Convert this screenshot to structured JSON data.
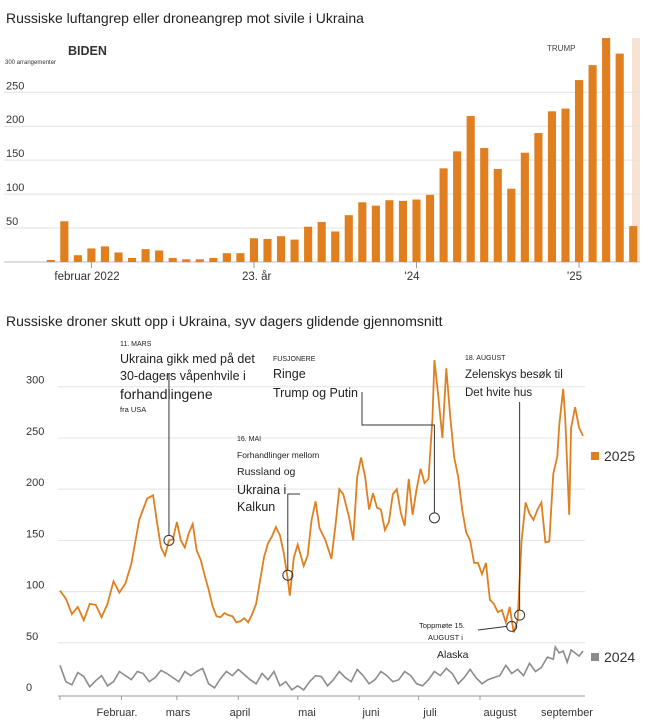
{
  "chart_data": [
    {
      "type": "bar",
      "title": "Russiske luftangrep eller droneangrep mot sivile i Ukraina",
      "ylabel_note": "300 arrangementer",
      "ylim": [
        0,
        330
      ],
      "yticks": [
        50,
        100,
        150,
        200,
        250
      ],
      "bar_color": "#e07f1f",
      "shade_color": "#f8e3d3",
      "period_labels": {
        "left": "BIDEN",
        "right": "TRUMP"
      },
      "trump_from_index": 44,
      "x_labels": [
        {
          "index": 3,
          "label": "februar 2022"
        },
        {
          "index": 15,
          "label": "23. år"
        },
        {
          "index": 27,
          "label": "'24"
        },
        {
          "index": 39,
          "label": "'25"
        }
      ],
      "values": [
        3,
        60,
        10,
        20,
        23,
        14,
        6,
        19,
        17,
        6,
        4,
        4,
        6,
        13,
        13,
        35,
        34,
        38,
        33,
        52,
        59,
        45,
        69,
        88,
        83,
        91,
        90,
        92,
        99,
        138,
        163,
        215,
        168,
        137,
        108,
        161,
        190,
        222,
        226,
        268,
        290,
        330,
        307,
        53
      ]
    },
    {
      "type": "line",
      "title": "Russiske droner skutt opp i Ukraina, syv dagers glidende gjennomsnitt",
      "ylim": [
        0,
        330
      ],
      "yticks": [
        0,
        50,
        100,
        150,
        200,
        250,
        300
      ],
      "xticks": [
        "Februar.",
        "mars",
        "april",
        "mai",
        "juni",
        "juli",
        "august",
        "september"
      ],
      "series": [
        {
          "name": "2025",
          "color": "#e07f1f",
          "points": [
            [
              0,
              101
            ],
            [
              3,
              93
            ],
            [
              6,
              78
            ],
            [
              9,
              85
            ],
            [
              12,
              72
            ],
            [
              15,
              88
            ],
            [
              18,
              87
            ],
            [
              21,
              75
            ],
            [
              24,
              88
            ],
            [
              27,
              110
            ],
            [
              30,
              99
            ],
            [
              33,
              108
            ],
            [
              36,
              127
            ],
            [
              40,
              170
            ],
            [
              44,
              191
            ],
            [
              47,
              194
            ],
            [
              49,
              167
            ],
            [
              51,
              143
            ],
            [
              53,
              135
            ],
            [
              55,
              150
            ],
            [
              57,
              151
            ],
            [
              59,
              168
            ],
            [
              61,
              150
            ],
            [
              63,
              143
            ],
            [
              65,
              157
            ],
            [
              67,
              166
            ],
            [
              69,
              140
            ],
            [
              71,
              131
            ],
            [
              73,
              116
            ],
            [
              75,
              102
            ],
            [
              77,
              86
            ],
            [
              79,
              76
            ],
            [
              81,
              75
            ],
            [
              83,
              79
            ],
            [
              85,
              77
            ],
            [
              87,
              76
            ],
            [
              89,
              70
            ],
            [
              91,
              71
            ],
            [
              93,
              74
            ],
            [
              95,
              70
            ],
            [
              97,
              78
            ],
            [
              99,
              88
            ],
            [
              101,
              111
            ],
            [
              103,
              134
            ],
            [
              105,
              147
            ],
            [
              107,
              154
            ],
            [
              109,
              163
            ],
            [
              111,
              155
            ],
            [
              113,
              137
            ],
            [
              115,
              112
            ],
            [
              116,
              96
            ],
            [
              118,
              133
            ],
            [
              120,
              146
            ],
            [
              123,
              125
            ],
            [
              125,
              135
            ],
            [
              127,
              170
            ],
            [
              129,
              188
            ],
            [
              131,
              162
            ],
            [
              134,
              150
            ],
            [
              137,
              132
            ],
            [
              139,
              164
            ],
            [
              141,
              200
            ],
            [
              143,
              195
            ],
            [
              146,
              172
            ],
            [
              148,
              150
            ],
            [
              150,
              212
            ],
            [
              152,
              231
            ],
            [
              154,
              212
            ],
            [
              156,
              180
            ],
            [
              158,
              196
            ],
            [
              160,
              182
            ],
            [
              162,
              180
            ],
            [
              164,
              160
            ],
            [
              166,
              168
            ],
            [
              168,
              195
            ],
            [
              170,
              200
            ],
            [
              172,
              177
            ],
            [
              174,
              164
            ],
            [
              176,
              210
            ],
            [
              178,
              175
            ],
            [
              180,
              200
            ],
            [
              182,
              220
            ],
            [
              184,
              206
            ],
            [
              186,
              210
            ],
            [
              188,
              270
            ],
            [
              189,
              326
            ],
            [
              191,
              290
            ],
            [
              193,
              250
            ],
            [
              195,
              318
            ],
            [
              197,
              270
            ],
            [
              199,
              231
            ],
            [
              201,
              212
            ],
            [
              203,
              180
            ],
            [
              205,
              158
            ],
            [
              207,
              150
            ],
            [
              209,
              128
            ],
            [
              211,
              128
            ],
            [
              213,
              117
            ],
            [
              215,
              128
            ],
            [
              217,
              92
            ],
            [
              219,
              88
            ],
            [
              221,
              80
            ],
            [
              223,
              82
            ],
            [
              225,
              70
            ],
            [
              227,
              85
            ],
            [
              229,
              60
            ],
            [
              231,
              72
            ],
            [
              233,
              150
            ],
            [
              235,
              187
            ],
            [
              237,
              176
            ],
            [
              239,
              170
            ],
            [
              241,
              180
            ],
            [
              243,
              187
            ],
            [
              245,
              148
            ],
            [
              247,
              149
            ],
            [
              249,
              215
            ],
            [
              251,
              232
            ],
            [
              252,
              262
            ],
            [
              254,
              298
            ],
            [
              255,
              270
            ],
            [
              257,
              175
            ],
            [
              258,
              260
            ],
            [
              260,
              280
            ],
            [
              262,
              260
            ],
            [
              264,
              252
            ]
          ]
        },
        {
          "name": "2024",
          "color": "#8c8c8c",
          "points": [
            [
              0,
              28
            ],
            [
              3,
              12
            ],
            [
              6,
              9
            ],
            [
              9,
              21
            ],
            [
              12,
              17
            ],
            [
              15,
              7
            ],
            [
              18,
              13
            ],
            [
              21,
              18
            ],
            [
              24,
              8
            ],
            [
              27,
              12
            ],
            [
              30,
              22
            ],
            [
              33,
              18
            ],
            [
              36,
              14
            ],
            [
              39,
              22
            ],
            [
              42,
              20
            ],
            [
              45,
              12
            ],
            [
              48,
              16
            ],
            [
              51,
              23
            ],
            [
              54,
              20
            ],
            [
              57,
              16
            ],
            [
              60,
              12
            ],
            [
              63,
              22
            ],
            [
              66,
              18
            ],
            [
              69,
              22
            ],
            [
              72,
              25
            ],
            [
              75,
              10
            ],
            [
              78,
              6
            ],
            [
              81,
              15
            ],
            [
              84,
              22
            ],
            [
              87,
              18
            ],
            [
              90,
              24
            ],
            [
              93,
              19
            ],
            [
              96,
              14
            ],
            [
              99,
              10
            ],
            [
              102,
              20
            ],
            [
              105,
              14
            ],
            [
              108,
              22
            ],
            [
              111,
              8
            ],
            [
              114,
              12
            ],
            [
              117,
              4
            ],
            [
              120,
              8
            ],
            [
              123,
              4
            ],
            [
              126,
              12
            ],
            [
              129,
              18
            ],
            [
              132,
              17
            ],
            [
              135,
              8
            ],
            [
              138,
              14
            ],
            [
              141,
              22
            ],
            [
              144,
              16
            ],
            [
              147,
              12
            ],
            [
              150,
              24
            ],
            [
              153,
              18
            ],
            [
              156,
              10
            ],
            [
              159,
              14
            ],
            [
              162,
              22
            ],
            [
              165,
              18
            ],
            [
              168,
              12
            ],
            [
              171,
              14
            ],
            [
              174,
              22
            ],
            [
              177,
              18
            ],
            [
              180,
              10
            ],
            [
              183,
              8
            ],
            [
              186,
              14
            ],
            [
              189,
              22
            ],
            [
              192,
              18
            ],
            [
              195,
              25
            ],
            [
              198,
              20
            ],
            [
              201,
              10
            ],
            [
              204,
              16
            ],
            [
              207,
              24
            ],
            [
              210,
              16
            ],
            [
              213,
              10
            ],
            [
              216,
              14
            ],
            [
              219,
              16
            ],
            [
              222,
              18
            ],
            [
              225,
              28
            ],
            [
              228,
              20
            ],
            [
              231,
              24
            ],
            [
              234,
              18
            ],
            [
              237,
              30
            ],
            [
              240,
              22
            ],
            [
              243,
              26
            ],
            [
              246,
              36
            ],
            [
              249,
              34
            ],
            [
              250,
              46
            ],
            [
              252,
              40
            ],
            [
              254,
              42
            ],
            [
              256,
              31
            ],
            [
              258,
              43
            ],
            [
              260,
              40
            ],
            [
              262,
              37
            ],
            [
              264,
              42
            ]
          ]
        }
      ],
      "annotations": [
        {
          "id": "march",
          "date": "11. MARS",
          "lines": [
            "Ukraina gikk med på det",
            "30-dagers våpenhvile i",
            "forhandlingene"
          ],
          "source": "fra USA",
          "x": 55,
          "y": 150
        },
        {
          "id": "may",
          "date": "16. MAI",
          "lines": [
            "Forhandlinger mellom",
            "Russland og",
            "Ukraina i",
            "Kalkun"
          ],
          "x": 115,
          "y": 116
        },
        {
          "id": "july",
          "date": "FUSJONERE",
          "lines": [
            "Ringe",
            "Trump og Putin"
          ],
          "x": 189,
          "y": 172
        },
        {
          "id": "aug18",
          "date": "18. AUGUST",
          "lines": [
            "Zelenskys besøk til",
            "Det hvite hus"
          ],
          "x": 232,
          "y": 77
        },
        {
          "id": "aug15",
          "lines": [
            "Toppmøte 15.",
            "AUGUST i",
            "Alaska"
          ],
          "x": 228,
          "y": 66
        }
      ]
    }
  ]
}
